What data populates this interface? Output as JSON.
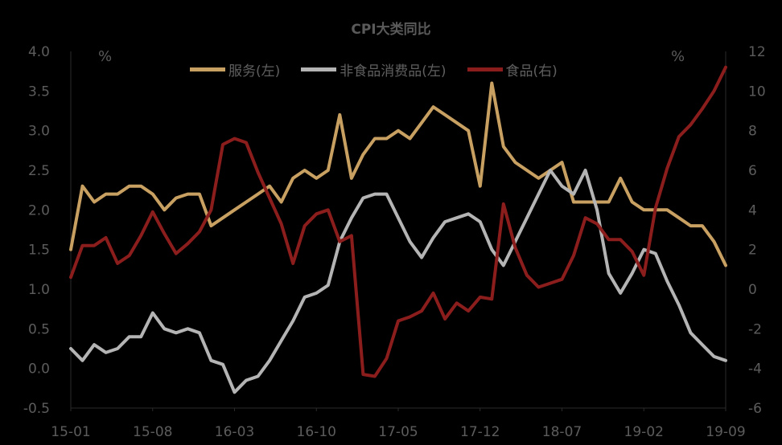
{
  "chart_data": {
    "type": "line",
    "title": "CPI大类同比",
    "left_unit": "%",
    "right_unit": "%",
    "x_ticks": [
      "15-01",
      "15-08",
      "16-03",
      "16-10",
      "17-05",
      "17-12",
      "18-07",
      "19-02",
      "19-09"
    ],
    "y_left": {
      "min": -0.5,
      "max": 4.0,
      "ticks": [
        "4.0",
        "3.5",
        "3.0",
        "2.5",
        "2.0",
        "1.5",
        "1.0",
        "0.5",
        "0.0",
        "-0.5"
      ]
    },
    "y_right": {
      "min": -6,
      "max": 12,
      "ticks": [
        "12",
        "10",
        "8",
        "6",
        "4",
        "2",
        "0",
        "-2",
        "-4",
        "-6"
      ]
    },
    "x": [
      "15-01",
      "15-02",
      "15-03",
      "15-04",
      "15-05",
      "15-06",
      "15-07",
      "15-08",
      "15-09",
      "15-10",
      "15-11",
      "15-12",
      "16-01",
      "16-02",
      "16-03",
      "16-04",
      "16-05",
      "16-06",
      "16-07",
      "16-08",
      "16-09",
      "16-10",
      "16-11",
      "16-12",
      "17-01",
      "17-02",
      "17-03",
      "17-04",
      "17-05",
      "17-06",
      "17-07",
      "17-08",
      "17-09",
      "17-10",
      "17-11",
      "17-12",
      "18-01",
      "18-02",
      "18-03",
      "18-04",
      "18-05",
      "18-06",
      "18-07",
      "18-08",
      "18-09",
      "18-10",
      "18-11",
      "18-12",
      "19-01",
      "19-02",
      "19-03",
      "19-04",
      "19-05",
      "19-06",
      "19-07",
      "19-08",
      "19-09"
    ],
    "series": [
      {
        "name": "服务(左)",
        "axis": "left",
        "color": "#c8a062",
        "values": [
          1.5,
          2.3,
          2.1,
          2.2,
          2.2,
          2.3,
          2.3,
          2.2,
          2.0,
          2.15,
          2.2,
          2.2,
          1.8,
          1.9,
          2.0,
          2.1,
          2.2,
          2.3,
          2.1,
          2.4,
          2.5,
          2.4,
          2.5,
          3.2,
          2.4,
          2.7,
          2.9,
          2.9,
          3.0,
          2.9,
          3.1,
          3.3,
          3.2,
          3.1,
          3.0,
          2.3,
          3.6,
          2.8,
          2.6,
          2.5,
          2.4,
          2.5,
          2.6,
          2.1,
          2.1,
          2.1,
          2.1,
          2.4,
          2.1,
          2.0,
          2.0,
          2.0,
          1.9,
          1.8,
          1.8,
          1.6,
          1.3
        ]
      },
      {
        "name": "非食品消费品(左)",
        "axis": "left",
        "color": "#b4b4b4",
        "values": [
          0.25,
          0.1,
          0.3,
          0.2,
          0.25,
          0.4,
          0.4,
          0.7,
          0.5,
          0.45,
          0.5,
          0.45,
          0.1,
          0.05,
          -0.3,
          -0.15,
          -0.1,
          0.1,
          0.35,
          0.6,
          0.9,
          0.95,
          1.05,
          1.6,
          1.9,
          2.15,
          2.2,
          2.2,
          1.9,
          1.6,
          1.4,
          1.65,
          1.85,
          1.9,
          1.95,
          1.85,
          1.5,
          1.3,
          1.6,
          1.9,
          2.2,
          2.5,
          2.3,
          2.2,
          2.5,
          2.0,
          1.2,
          0.95,
          1.2,
          1.5,
          1.45,
          1.1,
          0.8,
          0.45,
          0.3,
          0.15,
          0.1
        ]
      },
      {
        "name": "食品(右)",
        "axis": "right",
        "color": "#8b1e1c",
        "values": [
          0.6,
          2.2,
          2.2,
          2.6,
          1.3,
          1.7,
          2.7,
          3.9,
          2.8,
          1.8,
          2.3,
          2.9,
          4.0,
          7.3,
          7.6,
          7.4,
          5.9,
          4.6,
          3.3,
          1.3,
          3.2,
          3.8,
          4.0,
          2.4,
          2.7,
          -4.3,
          -4.4,
          -3.5,
          -1.6,
          -1.4,
          -1.1,
          -0.2,
          -1.5,
          -0.7,
          -1.1,
          -0.4,
          -0.5,
          4.3,
          2.1,
          0.7,
          0.1,
          0.3,
          0.5,
          1.7,
          3.6,
          3.3,
          2.5,
          2.5,
          1.9,
          0.7,
          4.1,
          6.1,
          7.7,
          8.3,
          9.1,
          10.0,
          11.2
        ]
      }
    ]
  }
}
